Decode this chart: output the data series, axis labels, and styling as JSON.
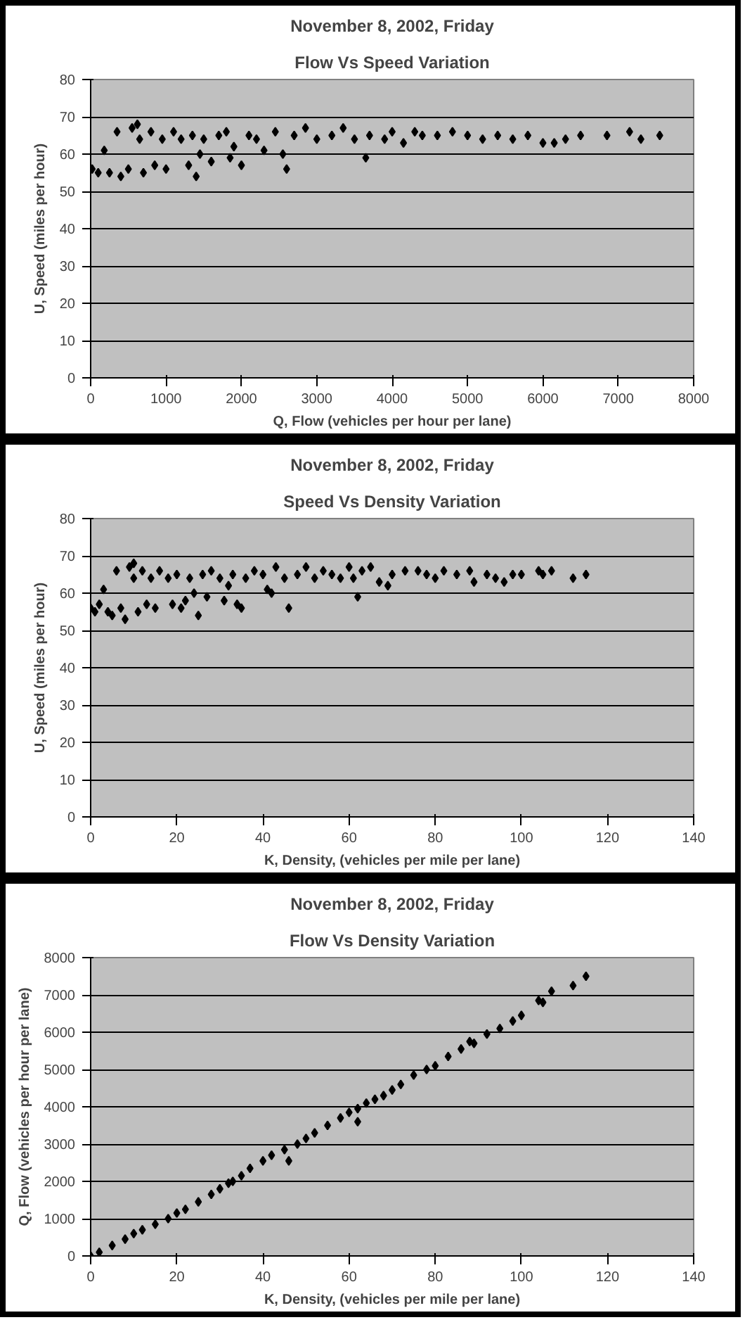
{
  "chart_data": [
    {
      "type": "scatter",
      "title": "November 8, 2002, Friday",
      "subtitle": "Flow Vs Speed Variation",
      "xlabel": "Q, Flow (vehicles per hour per lane)",
      "ylabel": "U, Speed (miles per hour)",
      "xlim": [
        0,
        8000
      ],
      "xticks": [
        0,
        1000,
        2000,
        3000,
        4000,
        5000,
        6000,
        7000,
        8000
      ],
      "ylim": [
        0,
        80
      ],
      "yticks": [
        0,
        10,
        20,
        30,
        40,
        50,
        60,
        70,
        80
      ],
      "grid": "y",
      "marker": "diamond",
      "series": [
        {
          "color": "#000000",
          "x": [
            20,
            100,
            180,
            250,
            350,
            400,
            500,
            550,
            620,
            650,
            700,
            800,
            850,
            950,
            1000,
            1100,
            1200,
            1300,
            1350,
            1400,
            1450,
            1500,
            1600,
            1700,
            1800,
            1850,
            1900,
            2000,
            2100,
            2200,
            2300,
            2450,
            2550,
            2600,
            2700,
            2850,
            3000,
            3200,
            3350,
            3500,
            3650,
            3700,
            3900,
            4000,
            4150,
            4300,
            4400,
            4600,
            4800,
            5000,
            5200,
            5400,
            5600,
            5800,
            6000,
            6150,
            6300,
            6500,
            6850,
            7150,
            7300,
            7550
          ],
          "values": [
            56,
            55,
            61,
            55,
            66,
            54,
            56,
            67,
            68,
            64,
            55,
            66,
            57,
            64,
            56,
            66,
            64,
            57,
            65,
            54,
            60,
            64,
            58,
            65,
            66,
            59,
            62,
            57,
            65,
            64,
            61,
            66,
            60,
            56,
            65,
            67,
            64,
            65,
            67,
            64,
            59,
            65,
            64,
            66,
            63,
            66,
            65,
            65,
            66,
            65,
            64,
            65,
            64,
            65,
            63,
            63,
            64,
            65,
            65,
            66,
            64,
            65
          ]
        }
      ]
    },
    {
      "type": "scatter",
      "title": "November 8, 2002, Friday",
      "subtitle": "Speed Vs Density Variation",
      "xlabel": "K, Density, (vehicles per mile per lane)",
      "ylabel": "U, Speed (miles per hour)",
      "xlim": [
        0,
        140
      ],
      "xticks": [
        0,
        20,
        40,
        60,
        80,
        100,
        120,
        140
      ],
      "ylim": [
        0,
        80
      ],
      "yticks": [
        0,
        10,
        20,
        30,
        40,
        50,
        60,
        70,
        80
      ],
      "grid": "y",
      "marker": "diamond",
      "series": [
        {
          "color": "#000000",
          "x": [
            0,
            1,
            2,
            3,
            4,
            5,
            6,
            7,
            8,
            9,
            10,
            10,
            11,
            12,
            13,
            14,
            15,
            16,
            18,
            19,
            20,
            21,
            22,
            23,
            24,
            25,
            26,
            27,
            28,
            30,
            31,
            32,
            33,
            34,
            35,
            36,
            38,
            40,
            41,
            42,
            43,
            45,
            46,
            48,
            50,
            52,
            54,
            56,
            58,
            60,
            61,
            62,
            63,
            65,
            67,
            69,
            70,
            73,
            76,
            78,
            80,
            82,
            85,
            88,
            89,
            92,
            94,
            96,
            98,
            100,
            104,
            105,
            107,
            112,
            115
          ],
          "values": [
            56,
            55,
            57,
            61,
            55,
            54,
            66,
            56,
            53,
            67,
            68,
            64,
            55,
            66,
            57,
            64,
            56,
            66,
            64,
            57,
            65,
            56,
            58,
            64,
            60,
            54,
            65,
            59,
            66,
            64,
            58,
            62,
            65,
            57,
            56,
            64,
            66,
            65,
            61,
            60,
            67,
            64,
            56,
            65,
            67,
            64,
            66,
            65,
            64,
            67,
            64,
            59,
            66,
            67,
            63,
            62,
            65,
            66,
            66,
            65,
            64,
            66,
            65,
            66,
            63,
            65,
            64,
            63,
            65,
            65,
            66,
            65,
            66,
            64,
            65
          ]
        }
      ]
    },
    {
      "type": "scatter",
      "title": "November 8, 2002, Friday",
      "subtitle": "Flow Vs Density Variation",
      "xlabel": "K, Density, (vehicles per mile per lane)",
      "ylabel": "Q, Flow (vehicles per hour per lane)",
      "xlim": [
        0,
        140
      ],
      "xticks": [
        0,
        20,
        40,
        60,
        80,
        100,
        120,
        140
      ],
      "ylim": [
        0,
        8000
      ],
      "yticks": [
        0,
        1000,
        2000,
        3000,
        4000,
        5000,
        6000,
        7000,
        8000
      ],
      "grid": "y",
      "marker": "diamond",
      "series": [
        {
          "color": "#000000",
          "x": [
            0,
            2,
            5,
            8,
            10,
            12,
            15,
            18,
            20,
            22,
            25,
            28,
            30,
            32,
            33,
            35,
            37,
            40,
            42,
            45,
            46,
            48,
            50,
            52,
            55,
            58,
            60,
            62,
            62,
            64,
            66,
            68,
            70,
            72,
            75,
            78,
            80,
            83,
            86,
            88,
            89,
            92,
            95,
            98,
            100,
            104,
            105,
            107,
            112,
            115
          ],
          "values": [
            0,
            100,
            280,
            450,
            600,
            700,
            850,
            1000,
            1150,
            1250,
            1450,
            1650,
            1800,
            1950,
            2000,
            2150,
            2350,
            2550,
            2700,
            2850,
            2550,
            3000,
            3150,
            3300,
            3500,
            3700,
            3850,
            3950,
            3600,
            4100,
            4200,
            4300,
            4450,
            4600,
            4850,
            5000,
            5100,
            5350,
            5550,
            5750,
            5700,
            5950,
            6100,
            6300,
            6450,
            6850,
            6800,
            7100,
            7250,
            7500
          ]
        }
      ]
    }
  ]
}
